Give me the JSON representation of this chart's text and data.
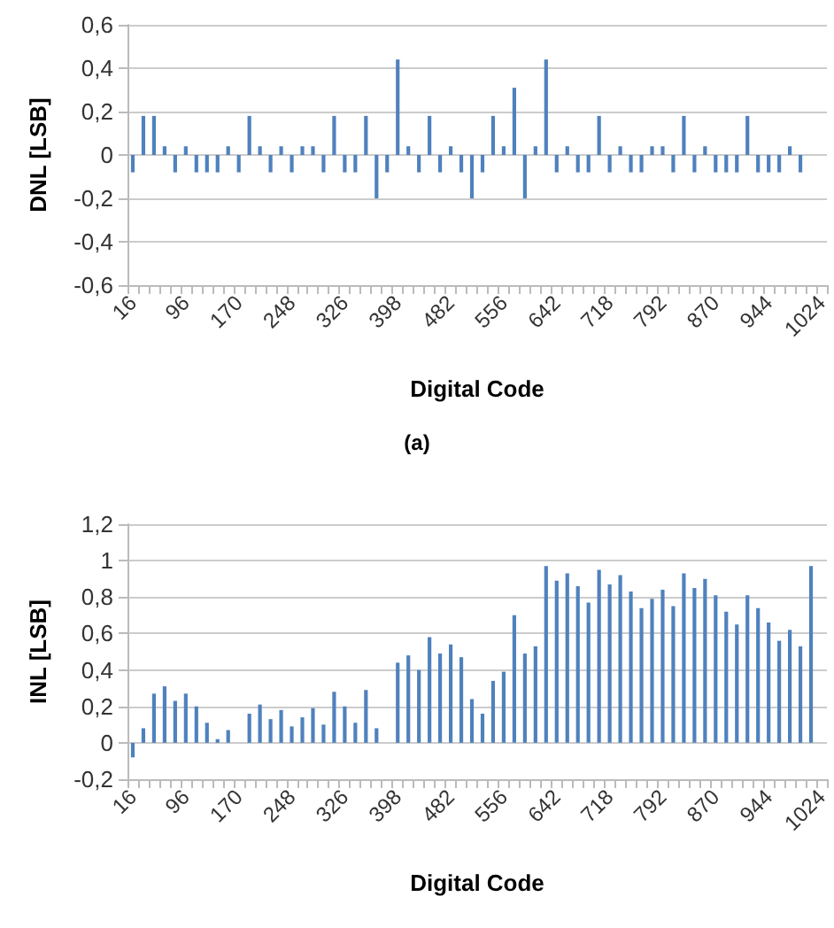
{
  "chart_data": [
    {
      "type": "bar",
      "xlabel": "Digital Code",
      "ylabel": "DNL [LSB]",
      "annotations": [
        "(a)"
      ],
      "categories": [
        "16",
        null,
        null,
        null,
        null,
        "96",
        null,
        null,
        null,
        null,
        "170",
        null,
        null,
        null,
        null,
        "248",
        null,
        null,
        null,
        null,
        "326",
        null,
        null,
        null,
        null,
        "398",
        null,
        null,
        null,
        null,
        "482",
        null,
        null,
        null,
        null,
        "556",
        null,
        null,
        null,
        null,
        "642",
        null,
        null,
        null,
        null,
        "718",
        null,
        null,
        null,
        null,
        "792",
        null,
        null,
        null,
        null,
        "870",
        null,
        null,
        null,
        null,
        "944",
        null,
        null,
        null,
        null,
        "1024"
      ],
      "values": [
        -0.08,
        0.18,
        0.18,
        0.04,
        -0.08,
        0.04,
        -0.08,
        -0.08,
        -0.08,
        0.04,
        -0.08,
        0.18,
        0.04,
        -0.08,
        0.04,
        -0.08,
        0.04,
        0.04,
        -0.08,
        0.18,
        -0.08,
        -0.08,
        0.18,
        -0.2,
        -0.08,
        0.44,
        0.04,
        -0.08,
        0.18,
        -0.08,
        0.04,
        -0.08,
        -0.2,
        -0.08,
        0.18,
        0.04,
        0.31,
        -0.2,
        0.04,
        0.44,
        -0.08,
        0.04,
        -0.08,
        -0.08,
        0.18,
        -0.08,
        0.04,
        -0.08,
        -0.08,
        0.04,
        0.04,
        -0.08,
        0.18,
        -0.08,
        0.04,
        -0.08,
        -0.08,
        -0.08,
        0.18,
        -0.08,
        -0.08,
        -0.08,
        0.04,
        -0.08,
        null,
        null
      ],
      "color": "#4f81bd",
      "ylim": [
        -0.6,
        0.6
      ],
      "yticks": [
        {
          "value": -0.6,
          "label": "-0,6"
        },
        {
          "value": -0.4,
          "label": "-0,4"
        },
        {
          "value": -0.2,
          "label": "-0,2"
        },
        {
          "value": 0,
          "label": "0"
        },
        {
          "value": 0.2,
          "label": "0,2"
        },
        {
          "value": 0.4,
          "label": "0,4"
        },
        {
          "value": 0.6,
          "label": "0,6"
        }
      ],
      "grid": "y"
    },
    {
      "type": "bar",
      "xlabel": "Digital Code",
      "ylabel": "INL [LSB]",
      "categories": [
        "16",
        null,
        null,
        null,
        null,
        "96",
        null,
        null,
        null,
        null,
        "170",
        null,
        null,
        null,
        null,
        "248",
        null,
        null,
        null,
        null,
        "326",
        null,
        null,
        null,
        null,
        "398",
        null,
        null,
        null,
        null,
        "482",
        null,
        null,
        null,
        null,
        "556",
        null,
        null,
        null,
        null,
        "642",
        null,
        null,
        null,
        null,
        "718",
        null,
        null,
        null,
        null,
        "792",
        null,
        null,
        null,
        null,
        "870",
        null,
        null,
        null,
        null,
        "944",
        null,
        null,
        null,
        null,
        "1024"
      ],
      "values": [
        -0.08,
        0.08,
        0.27,
        0.31,
        0.23,
        0.27,
        0.2,
        0.11,
        0.02,
        0.07,
        0,
        0.16,
        0.21,
        0.13,
        0.18,
        0.09,
        0.14,
        0.19,
        0.1,
        0.28,
        0.2,
        0.11,
        0.29,
        0.08,
        0,
        0.44,
        0.48,
        0.4,
        0.58,
        0.49,
        0.54,
        0.47,
        0.24,
        0.16,
        0.34,
        0.39,
        0.7,
        0.49,
        0.53,
        0.97,
        0.89,
        0.93,
        0.86,
        0.77,
        0.95,
        0.87,
        0.92,
        0.83,
        0.74,
        0.79,
        0.84,
        0.75,
        0.93,
        0.85,
        0.9,
        0.81,
        0.72,
        0.65,
        0.81,
        0.74,
        0.66,
        0.56,
        0.62,
        0.53,
        0.97,
        null
      ],
      "color": "#4f81bd",
      "ylim": [
        -0.2,
        1.2
      ],
      "yticks": [
        {
          "value": -0.2,
          "label": "-0,2"
        },
        {
          "value": 0,
          "label": "0"
        },
        {
          "value": 0.2,
          "label": "0,2"
        },
        {
          "value": 0.4,
          "label": "0,4"
        },
        {
          "value": 0.6,
          "label": "0,6"
        },
        {
          "value": 0.8,
          "label": "0,8"
        },
        {
          "value": 1,
          "label": "1"
        },
        {
          "value": 1.2,
          "label": "1,2"
        }
      ],
      "grid": "y"
    }
  ]
}
